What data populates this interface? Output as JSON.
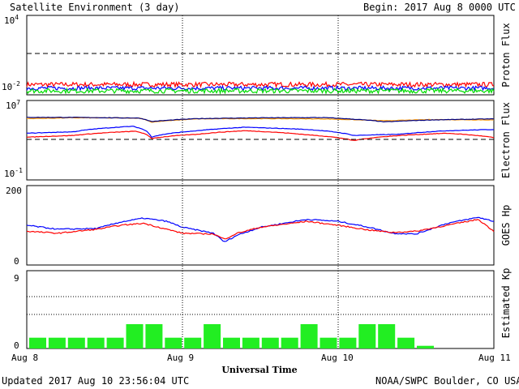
{
  "header": {
    "title": "Satellite Environment (3 day)",
    "begin": "Begin:  2017 Aug 8 0000 UTC"
  },
  "footer": {
    "updated": "Updated 2017 Aug 10 23:56:04 UTC",
    "credit": "NOAA/SWPC Boulder, CO USA"
  },
  "chart_data": [
    {
      "type": "line",
      "panel": "proton",
      "ylabel": "Proton Flux",
      "yscale": "log",
      "ylim": [
        0.01,
        10000
      ],
      "yticks": [
        {
          "base": "10",
          "exp": "4"
        },
        {
          "base": "10",
          "exp": "-2"
        }
      ],
      "threshold": 10,
      "series": [
        {
          "color": "#ff0000",
          "level": 0.06,
          "noise": 0.35
        },
        {
          "color": "#0000ff",
          "level": 0.032,
          "noise": 0.3
        },
        {
          "color": "#00dd00",
          "level": 0.02,
          "noise": 0.35
        }
      ]
    },
    {
      "type": "line",
      "panel": "electron",
      "ylabel": "Electron Flux",
      "yscale": "log",
      "ylim": [
        0.1,
        10000000
      ],
      "yticks": [
        {
          "base": "10",
          "exp": "7"
        },
        {
          "base": "10",
          "exp": "-1"
        }
      ],
      "threshold": 1000,
      "series": [
        {
          "color": "#ff9900",
          "x": [
            0,
            0.3,
            0.72,
            0.8,
            1.1,
            1.5,
            1.9,
            2.3,
            2.6,
            3.0
          ],
          "y": [
            150000,
            180000,
            170000,
            65000,
            140000,
            150000,
            140000,
            90000,
            120000,
            110000
          ]
        },
        {
          "color": "#000080",
          "x": [
            0,
            0.3,
            0.72,
            0.8,
            1.1,
            1.5,
            1.9,
            2.3,
            2.6,
            3.0
          ],
          "y": [
            200000,
            200000,
            170000,
            75000,
            150000,
            180000,
            190000,
            70000,
            110000,
            140000
          ]
        },
        {
          "color": "#0000ff",
          "x": [
            0,
            0.3,
            0.68,
            0.8,
            1.1,
            1.4,
            1.8,
            2.1,
            2.4,
            2.7,
            3.0
          ],
          "y": [
            5000,
            7000,
            25000,
            2000,
            9000,
            20000,
            12000,
            3000,
            4000,
            9000,
            12000
          ]
        },
        {
          "color": "#ff0000",
          "x": [
            0,
            0.3,
            0.7,
            0.8,
            1.1,
            1.4,
            1.8,
            2.1,
            2.4,
            2.7,
            3.0
          ],
          "y": [
            2000,
            3000,
            8000,
            1500,
            4000,
            9000,
            3500,
            900,
            3000,
            5000,
            1800
          ]
        }
      ]
    },
    {
      "type": "line",
      "panel": "goes_hp",
      "ylabel": "GOES Hp",
      "ylim": [
        0,
        200
      ],
      "yticks": [
        "200",
        "0"
      ],
      "series": [
        {
          "color": "#0000ff",
          "x": [
            0,
            0.2,
            0.45,
            0.6,
            0.75,
            0.9,
            1.0,
            1.2,
            1.27,
            1.35,
            1.5,
            1.8,
            2.0,
            2.2,
            2.35,
            2.5,
            2.7,
            2.9,
            3.0
          ],
          "y": [
            100,
            90,
            92,
            108,
            118,
            110,
            95,
            80,
            58,
            75,
            95,
            115,
            110,
            95,
            80,
            78,
            105,
            120,
            110
          ]
        },
        {
          "color": "#ff0000",
          "x": [
            0,
            0.2,
            0.45,
            0.6,
            0.75,
            0.9,
            1.0,
            1.2,
            1.27,
            1.35,
            1.5,
            1.8,
            2.0,
            2.2,
            2.35,
            2.5,
            2.7,
            2.9,
            3.0
          ],
          "y": [
            85,
            80,
            90,
            100,
            105,
            90,
            80,
            78,
            65,
            80,
            95,
            110,
            100,
            88,
            82,
            85,
            100,
            115,
            85
          ]
        }
      ]
    },
    {
      "type": "bar",
      "panel": "kp",
      "ylabel": "Estimated Kp",
      "ylim": [
        0,
        9
      ],
      "yticks": [
        "9",
        "0"
      ],
      "color": "#22ee22",
      "values": [
        1.33,
        1.33,
        1.33,
        1.33,
        1.33,
        3.0,
        3.0,
        1.33,
        1.33,
        3.0,
        1.33,
        1.33,
        1.33,
        1.33,
        3.0,
        1.33,
        1.33,
        3.0,
        3.0,
        1.33,
        0.33,
        0
      ]
    }
  ],
  "xaxis": {
    "label": "Universal Time",
    "ticks": [
      "Aug 8",
      "Aug 9",
      "Aug 10",
      "Aug 11"
    ]
  }
}
